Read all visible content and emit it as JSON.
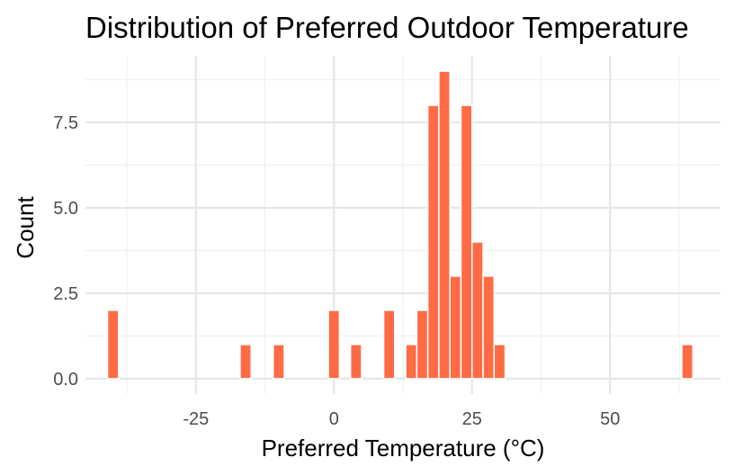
{
  "chart_data": {
    "type": "bar",
    "title": "Distribution of Preferred Outdoor Temperature",
    "xlabel": "Preferred Temperature (°C)",
    "ylabel": "Count",
    "xlim": [
      -45,
      70
    ],
    "ylim": [
      0,
      9
    ],
    "x_ticks": [
      -25,
      0,
      25,
      50
    ],
    "x_tick_labels": [
      "-25",
      "0",
      "25",
      "50"
    ],
    "y_ticks": [
      0,
      2.5,
      5,
      7.5
    ],
    "y_tick_labels": [
      "0.0",
      "2.5",
      "5.0",
      "7.5"
    ],
    "bin_width": 2,
    "bins": [
      {
        "x": -40,
        "count": 2
      },
      {
        "x": -16,
        "count": 1
      },
      {
        "x": -10,
        "count": 1
      },
      {
        "x": 0,
        "count": 2
      },
      {
        "x": 4,
        "count": 1
      },
      {
        "x": 10,
        "count": 2
      },
      {
        "x": 14,
        "count": 1
      },
      {
        "x": 16,
        "count": 2
      },
      {
        "x": 18,
        "count": 8
      },
      {
        "x": 20,
        "count": 9
      },
      {
        "x": 22,
        "count": 3
      },
      {
        "x": 24,
        "count": 8
      },
      {
        "x": 26,
        "count": 4
      },
      {
        "x": 28,
        "count": 3
      },
      {
        "x": 30,
        "count": 1
      },
      {
        "x": 64,
        "count": 1
      }
    ],
    "bar_color": "#ff6b45",
    "grid": true,
    "legend": "none"
  }
}
